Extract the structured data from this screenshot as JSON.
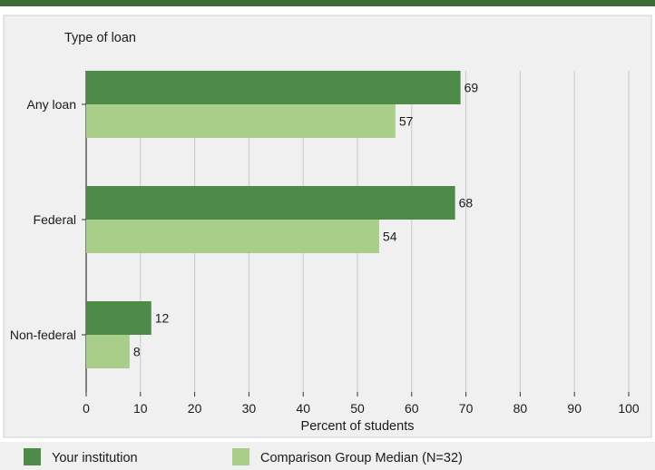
{
  "colors": {
    "top_bar": "#3d6b35",
    "panel_bg": "#f0f0f0",
    "panel_border": "#cfcfcf",
    "grid": "#c8c8c8",
    "your_institution": "#4e8b49",
    "comparison": "#a9ce8a",
    "axis": "#333333"
  },
  "chart_data": {
    "type": "bar",
    "orientation": "horizontal",
    "ylabel": "Type of loan",
    "xlabel": "Percent of students",
    "xlim": [
      0,
      100
    ],
    "xticks": [
      "0",
      "10",
      "20",
      "30",
      "40",
      "50",
      "60",
      "70",
      "80",
      "90",
      "100"
    ],
    "grid": true,
    "categories": [
      "Any loan",
      "Federal",
      "Non-federal"
    ],
    "series": [
      {
        "name": "Your institution",
        "values": [
          69,
          68,
          12
        ],
        "labels": [
          "69",
          "68",
          "12"
        ]
      },
      {
        "name": "Comparison Group Median (N=32)",
        "values": [
          57,
          54,
          8
        ],
        "labels": [
          "57",
          "54",
          "8"
        ]
      }
    ],
    "legend_placement": "bottom"
  }
}
